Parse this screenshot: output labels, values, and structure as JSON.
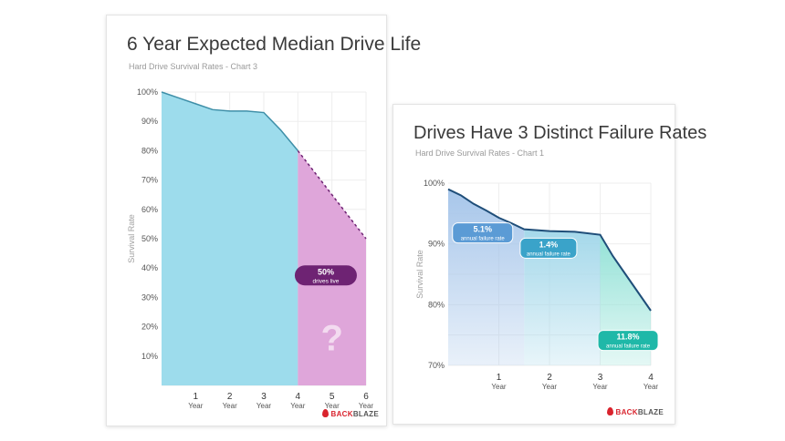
{
  "chart_data": [
    {
      "type": "area",
      "title": "6 Year Expected Median Drive Life",
      "subtitle": "Hard Drive Survival Rates - Chart 3",
      "ylabel": "Survival Rate",
      "ylim": [
        0,
        100
      ],
      "yticks": [
        "100%",
        "90%",
        "80%",
        "70%",
        "60%",
        "50%",
        "40%",
        "30%",
        "20%",
        "10%"
      ],
      "xlim": [
        0,
        6
      ],
      "xticks": [
        {
          "num": "1",
          "unit": "Year"
        },
        {
          "num": "2",
          "unit": "Year"
        },
        {
          "num": "3",
          "unit": "Year"
        },
        {
          "num": "4",
          "unit": "Year"
        },
        {
          "num": "5",
          "unit": "Year"
        },
        {
          "num": "6",
          "unit": "Year"
        }
      ],
      "series": [
        {
          "name": "",
          "x": [
            0,
            0.5,
            1,
            1.5,
            2,
            2.5,
            3,
            3.5,
            4
          ],
          "y": [
            100,
            98,
            96,
            94,
            93.5,
            93.5,
            93,
            87,
            80
          ],
          "color": "#9ddcec"
        },
        {
          "name": "",
          "x": [
            4,
            6
          ],
          "y": [
            80,
            50
          ],
          "color": "#dfa6da",
          "dashed": true
        }
      ],
      "callout": {
        "value": "50%",
        "text": "drives live",
        "x": 6,
        "y": 50,
        "color": "#6e2373"
      },
      "unknown_mark": "?",
      "brand": "BACKBLAZE",
      "brand_color": "#d9232d"
    },
    {
      "type": "area",
      "title": "Drives Have 3 Distinct Failure Rates",
      "subtitle": "Hard Drive Survival Rates - Chart 1",
      "ylabel": "Survival Rate",
      "ylim": [
        70,
        100
      ],
      "yticks": [
        "100%",
        "90%",
        "80%",
        "70%"
      ],
      "xlim": [
        0,
        4
      ],
      "xticks": [
        {
          "num": "1",
          "unit": "Year"
        },
        {
          "num": "2",
          "unit": "Year"
        },
        {
          "num": "3",
          "unit": "Year"
        },
        {
          "num": "4",
          "unit": "Year"
        }
      ],
      "series": [
        {
          "name": "",
          "x": [
            0,
            0.25,
            0.5,
            0.75,
            1,
            1.25,
            1.5,
            2,
            2.5,
            3,
            3.25,
            3.5,
            3.75,
            4
          ],
          "y": [
            99,
            98,
            96.6,
            95.5,
            94.3,
            93.4,
            92.4,
            92.1,
            92,
            91.5,
            88,
            85,
            82,
            79
          ]
        }
      ],
      "phases": [
        {
          "x0": 0,
          "x1": 1.5,
          "value": "5.1%",
          "text": "annual failure rate",
          "color": "#5b9bd5",
          "fill": "#a7c6ea"
        },
        {
          "x0": 1.5,
          "x1": 3,
          "value": "1.4%",
          "text": "annual failure rate",
          "color": "#3aa3c9",
          "fill": "#a4d8ea"
        },
        {
          "x0": 3,
          "x1": 4,
          "value": "11.8%",
          "text": "annual failure rate",
          "color": "#1fb8a8",
          "fill": "#94e2d7"
        }
      ],
      "line_color": "#1f4e79",
      "brand": "BACKBLAZE",
      "brand_color": "#d9232d"
    }
  ]
}
